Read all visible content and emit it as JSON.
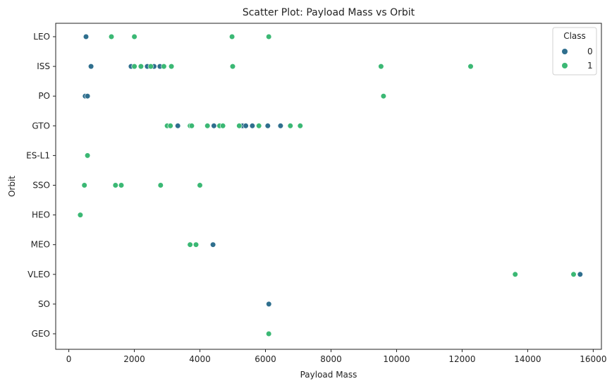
{
  "chart_data": {
    "type": "scatter",
    "title": "Scatter Plot: Payload Mass vs Orbit",
    "xlabel": "Payload Mass",
    "ylabel": "Orbit",
    "xlim": [
      -400,
      16250
    ],
    "xticks": [
      0,
      2000,
      4000,
      6000,
      8000,
      10000,
      12000,
      14000,
      16000
    ],
    "categories": [
      "LEO",
      "ISS",
      "PO",
      "GTO",
      "ES-L1",
      "SSO",
      "HEO",
      "MEO",
      "VLEO",
      "SO",
      "GEO"
    ],
    "grid": false,
    "legend": {
      "title": "Class",
      "placement": "top-right"
    },
    "series": [
      {
        "name": "0",
        "color": "#2f6f8e",
        "points": [
          {
            "x": 525,
            "y": "LEO"
          },
          {
            "x": 677,
            "y": "ISS"
          },
          {
            "x": 1900,
            "y": "ISS"
          },
          {
            "x": 2000,
            "y": "ISS"
          },
          {
            "x": 2395,
            "y": "ISS"
          },
          {
            "x": 2600,
            "y": "ISS"
          },
          {
            "x": 2780,
            "y": "ISS"
          },
          {
            "x": 500,
            "y": "PO"
          },
          {
            "x": 570,
            "y": "PO"
          },
          {
            "x": 3325,
            "y": "GTO"
          },
          {
            "x": 4428,
            "y": "GTO"
          },
          {
            "x": 5300,
            "y": "GTO"
          },
          {
            "x": 5400,
            "y": "GTO"
          },
          {
            "x": 5600,
            "y": "GTO"
          },
          {
            "x": 6070,
            "y": "GTO"
          },
          {
            "x": 6460,
            "y": "GTO"
          },
          {
            "x": 4400,
            "y": "MEO"
          },
          {
            "x": 15600,
            "y": "VLEO"
          },
          {
            "x": 6104,
            "y": "SO"
          }
        ]
      },
      {
        "name": "1",
        "color": "#3bb874",
        "points": [
          {
            "x": 1300,
            "y": "LEO"
          },
          {
            "x": 2000,
            "y": "LEO"
          },
          {
            "x": 4980,
            "y": "LEO"
          },
          {
            "x": 6100,
            "y": "LEO"
          },
          {
            "x": 2000,
            "y": "ISS"
          },
          {
            "x": 2200,
            "y": "ISS"
          },
          {
            "x": 2500,
            "y": "ISS"
          },
          {
            "x": 2900,
            "y": "ISS"
          },
          {
            "x": 3130,
            "y": "ISS"
          },
          {
            "x": 5000,
            "y": "ISS"
          },
          {
            "x": 9525,
            "y": "ISS"
          },
          {
            "x": 12260,
            "y": "ISS"
          },
          {
            "x": 9600,
            "y": "PO"
          },
          {
            "x": 3000,
            "y": "GTO"
          },
          {
            "x": 3100,
            "y": "GTO"
          },
          {
            "x": 3700,
            "y": "GTO"
          },
          {
            "x": 3750,
            "y": "GTO"
          },
          {
            "x": 4230,
            "y": "GTO"
          },
          {
            "x": 4600,
            "y": "GTO"
          },
          {
            "x": 4700,
            "y": "GTO"
          },
          {
            "x": 5200,
            "y": "GTO"
          },
          {
            "x": 5800,
            "y": "GTO"
          },
          {
            "x": 6760,
            "y": "GTO"
          },
          {
            "x": 7060,
            "y": "GTO"
          },
          {
            "x": 570,
            "y": "ES-L1"
          },
          {
            "x": 475,
            "y": "SSO"
          },
          {
            "x": 1425,
            "y": "SSO"
          },
          {
            "x": 1600,
            "y": "SSO"
          },
          {
            "x": 2800,
            "y": "SSO"
          },
          {
            "x": 4000,
            "y": "SSO"
          },
          {
            "x": 350,
            "y": "HEO"
          },
          {
            "x": 3700,
            "y": "MEO"
          },
          {
            "x": 3880,
            "y": "MEO"
          },
          {
            "x": 13620,
            "y": "VLEO"
          },
          {
            "x": 15400,
            "y": "VLEO"
          },
          {
            "x": 6100,
            "y": "GEO"
          }
        ]
      }
    ]
  }
}
